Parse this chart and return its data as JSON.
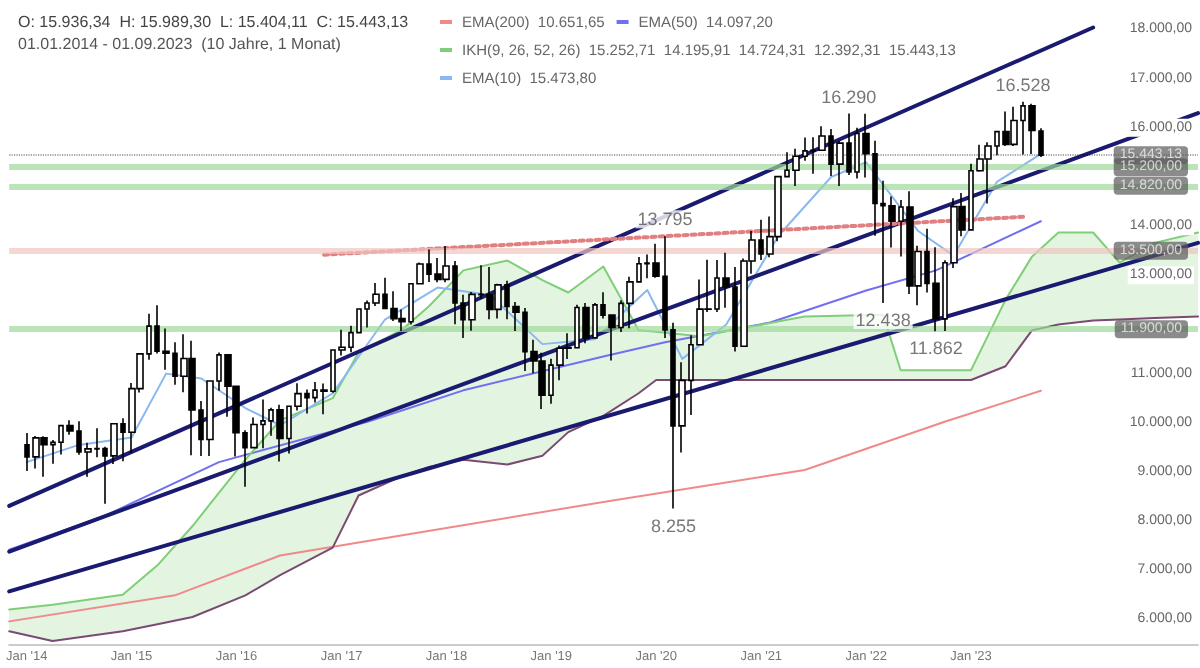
{
  "chart_data": {
    "type": "candlestick",
    "title": "O: 15.936,34  H: 15.989,30  L: 15.404,11  C: 15.443,13",
    "subtitle": "01.01.2014 - 01.09.2023  (10 Jahre, 1 Monat)",
    "x": [
      "2014-01",
      "2014-02",
      "2014-03",
      "2014-04",
      "2014-05",
      "2014-06",
      "2014-07",
      "2014-08",
      "2014-09",
      "2014-10",
      "2014-11",
      "2014-12",
      "2015-01",
      "2015-02",
      "2015-03",
      "2015-04",
      "2015-05",
      "2015-06",
      "2015-07",
      "2015-08",
      "2015-09",
      "2015-10",
      "2015-11",
      "2015-12",
      "2016-01",
      "2016-02",
      "2016-03",
      "2016-04",
      "2016-05",
      "2016-06",
      "2016-07",
      "2016-08",
      "2016-09",
      "2016-10",
      "2016-11",
      "2016-12",
      "2017-01",
      "2017-02",
      "2017-03",
      "2017-04",
      "2017-05",
      "2017-06",
      "2017-07",
      "2017-08",
      "2017-09",
      "2017-10",
      "2017-11",
      "2017-12",
      "2018-01",
      "2018-02",
      "2018-03",
      "2018-04",
      "2018-05",
      "2018-06",
      "2018-07",
      "2018-08",
      "2018-09",
      "2018-10",
      "2018-11",
      "2018-12",
      "2019-01",
      "2019-02",
      "2019-03",
      "2019-04",
      "2019-05",
      "2019-06",
      "2019-07",
      "2019-08",
      "2019-09",
      "2019-10",
      "2019-11",
      "2019-12",
      "2020-01",
      "2020-02",
      "2020-03",
      "2020-04",
      "2020-05",
      "2020-06",
      "2020-07",
      "2020-08",
      "2020-09",
      "2020-10",
      "2020-11",
      "2020-12",
      "2021-01",
      "2021-02",
      "2021-03",
      "2021-04",
      "2021-05",
      "2021-06",
      "2021-07",
      "2021-08",
      "2021-09",
      "2021-10",
      "2021-11",
      "2021-12",
      "2022-01",
      "2022-02",
      "2022-03",
      "2022-04",
      "2022-05",
      "2022-06",
      "2022-07",
      "2022-08",
      "2022-09",
      "2022-10",
      "2022-11",
      "2022-12",
      "2023-01",
      "2023-02",
      "2023-03",
      "2023-04",
      "2023-05",
      "2023-06",
      "2023-07",
      "2023-08",
      "2023-09"
    ],
    "ohlc": [
      [
        9552,
        9794,
        9017,
        9306
      ],
      [
        9306,
        9730,
        9071,
        9692
      ],
      [
        9692,
        9727,
        8903,
        9556
      ],
      [
        9556,
        9651,
        9166,
        9603
      ],
      [
        9603,
        9950,
        9357,
        9943
      ],
      [
        9943,
        10050,
        9754,
        9833
      ],
      [
        9833,
        10030,
        9348,
        9407
      ],
      [
        9407,
        9593,
        8903,
        9470
      ],
      [
        9470,
        9891,
        9300,
        9474
      ],
      [
        9474,
        9510,
        8355,
        9326
      ],
      [
        9326,
        9980,
        9162,
        9980
      ],
      [
        9980,
        10093,
        9219,
        9806
      ],
      [
        9806,
        10810,
        9382,
        10694
      ],
      [
        10694,
        11402,
        10617,
        11402
      ],
      [
        11402,
        12219,
        11281,
        11966
      ],
      [
        11966,
        12391,
        11411,
        11454
      ],
      [
        11454,
        11920,
        11081,
        11413
      ],
      [
        11413,
        11636,
        10776,
        10945
      ],
      [
        10945,
        11802,
        10621,
        11309
      ],
      [
        11309,
        11670,
        9338,
        10259
      ],
      [
        10259,
        10444,
        9325,
        9660
      ],
      [
        9660,
        10850,
        9326,
        10850
      ],
      [
        10850,
        11430,
        10651,
        11382
      ],
      [
        11382,
        11383,
        10124,
        10743
      ],
      [
        10743,
        10743,
        9314,
        9798
      ],
      [
        9798,
        9850,
        8700,
        9495
      ],
      [
        9495,
        10108,
        9486,
        9965
      ],
      [
        9965,
        10474,
        9484,
        10039
      ],
      [
        10039,
        10306,
        9737,
        10263
      ],
      [
        10263,
        10369,
        9214,
        9680
      ],
      [
        9680,
        10337,
        9373,
        10337
      ],
      [
        10337,
        10802,
        10250,
        10593
      ],
      [
        10593,
        10679,
        10190,
        10511
      ],
      [
        10511,
        10827,
        10414,
        10665
      ],
      [
        10665,
        10799,
        10174,
        10640
      ],
      [
        10640,
        11482,
        10611,
        11481
      ],
      [
        11481,
        11893,
        11367,
        11535
      ],
      [
        11535,
        11974,
        11436,
        11834
      ],
      [
        11834,
        12313,
        11833,
        12313
      ],
      [
        12313,
        12486,
        11937,
        12438
      ],
      [
        12438,
        12841,
        12375,
        12615
      ],
      [
        12615,
        12951,
        12314,
        12325
      ],
      [
        12325,
        12676,
        12071,
        12118
      ],
      [
        12118,
        12302,
        11869,
        12056
      ],
      [
        12056,
        12829,
        11999,
        12829
      ],
      [
        12829,
        13262,
        12826,
        13230
      ],
      [
        13230,
        13526,
        12862,
        13024
      ],
      [
        13024,
        13350,
        12861,
        12918
      ],
      [
        12918,
        13597,
        12857,
        13189
      ],
      [
        13189,
        13290,
        12003,
        12436
      ],
      [
        12436,
        12603,
        11727,
        12097
      ],
      [
        12097,
        12658,
        11872,
        12612
      ],
      [
        12612,
        13205,
        12522,
        12605
      ],
      [
        12605,
        13170,
        12104,
        12306
      ],
      [
        12306,
        12830,
        12121,
        12806
      ],
      [
        12806,
        12887,
        12104,
        12364
      ],
      [
        12364,
        12458,
        11865,
        12247
      ],
      [
        12247,
        12335,
        11051,
        11448
      ],
      [
        11448,
        11691,
        11009,
        11257
      ],
      [
        11257,
        11425,
        10279,
        10559
      ],
      [
        10559,
        11300,
        10386,
        11173
      ],
      [
        11173,
        11573,
        10864,
        11516
      ],
      [
        11516,
        11823,
        11299,
        11526
      ],
      [
        11526,
        12402,
        11526,
        12344
      ],
      [
        12344,
        12435,
        11620,
        11727
      ],
      [
        11727,
        12438,
        11725,
        12399
      ],
      [
        12399,
        12656,
        12121,
        12189
      ],
      [
        12189,
        12190,
        11266,
        11939
      ],
      [
        11939,
        12494,
        11845,
        12428
      ],
      [
        12428,
        12969,
        11925,
        12867
      ],
      [
        12867,
        13374,
        12866,
        13236
      ],
      [
        13236,
        13425,
        12940,
        13249
      ],
      [
        13249,
        13640,
        12948,
        12981
      ],
      [
        12981,
        13795,
        11724,
        11890
      ],
      [
        11890,
        12035,
        8255,
        9936
      ],
      [
        9936,
        11231,
        9393,
        10862
      ],
      [
        10862,
        11781,
        10160,
        11587
      ],
      [
        11587,
        12913,
        11577,
        12311
      ],
      [
        12311,
        13314,
        12253,
        12313
      ],
      [
        12313,
        13311,
        12254,
        12945
      ],
      [
        12945,
        13460,
        12340,
        12761
      ],
      [
        12761,
        13168,
        11451,
        11556
      ],
      [
        11556,
        13340,
        11556,
        13291
      ],
      [
        13291,
        13903,
        13030,
        13719
      ],
      [
        13719,
        14131,
        13311,
        13433
      ],
      [
        13433,
        14197,
        13368,
        13786
      ],
      [
        13786,
        15008,
        13691,
        15008
      ],
      [
        15008,
        15502,
        14999,
        15136
      ],
      [
        15136,
        15573,
        14816,
        15421
      ],
      [
        15421,
        15803,
        15331,
        15531
      ],
      [
        15531,
        15810,
        15068,
        15544
      ],
      [
        15544,
        16030,
        15529,
        15835
      ],
      [
        15835,
        15975,
        15020,
        15261
      ],
      [
        15261,
        15736,
        14819,
        15688
      ],
      [
        15688,
        16290,
        15038,
        15100
      ],
      [
        15100,
        16000,
        14967,
        15885
      ],
      [
        15885,
        16285,
        14989,
        15471
      ],
      [
        15471,
        15736,
        13807,
        14461
      ],
      [
        14461,
        14925,
        12438,
        14415
      ],
      [
        14415,
        14605,
        13565,
        14098
      ],
      [
        14098,
        14531,
        13381,
        14388
      ],
      [
        14388,
        14709,
        12618,
        12784
      ],
      [
        12784,
        13599,
        12391,
        13484
      ],
      [
        13484,
        13947,
        12652,
        12835
      ],
      [
        12835,
        13568,
        11862,
        12114
      ],
      [
        12114,
        13305,
        11869,
        13254
      ],
      [
        13254,
        14569,
        13150,
        14397
      ],
      [
        14397,
        14675,
        13792,
        13924
      ],
      [
        13924,
        15270,
        13924,
        15128
      ],
      [
        15128,
        15658,
        15104,
        15365
      ],
      [
        15365,
        15706,
        14458,
        15629
      ],
      [
        15629,
        15922,
        15444,
        15922
      ],
      [
        15922,
        16332,
        15629,
        15664
      ],
      [
        15664,
        16427,
        15629,
        16148
      ],
      [
        16148,
        16528,
        15456,
        16447
      ],
      [
        16447,
        16488,
        15469,
        15947
      ],
      [
        15936.34,
        15989.3,
        15404.11,
        15443.13
      ]
    ],
    "series": [
      {
        "type": "line",
        "name": "EMA(200)  10.651,65",
        "color": "#f08a8a",
        "x": [
          "2013-11",
          "2015-06",
          "2016-06",
          "2017-08",
          "2019-07",
          "2021-06",
          "2022-10",
          "2023-09"
        ],
        "values": [
          5960,
          6490,
          7300,
          7710,
          8390,
          9040,
          10020,
          10650
        ]
      },
      {
        "type": "line",
        "name": "EMA(50)  14.097,20",
        "color": "#7070f0",
        "x": [
          "2013-11",
          "2014-10",
          "2015-11",
          "2017-04",
          "2018-03",
          "2019-07",
          "2020-02",
          "2021-02",
          "2022-01",
          "2022-09",
          "2023-09"
        ],
        "values": [
          7420,
          8110,
          9200,
          10020,
          10660,
          11350,
          11640,
          12040,
          12690,
          13100,
          14100
        ]
      },
      {
        "type": "line",
        "name": "IKH(9, 26, 52, 26)  15.252,71  14.195,91  14.724,31  12.392,31  15.443,13",
        "color": "#7fcf78",
        "x": [
          "2013-11",
          "2014-04",
          "2014-12",
          "2015-04",
          "2015-08",
          "2016-02",
          "2016-06",
          "2016-12",
          "2017-03",
          "2017-08",
          "2017-11",
          "2018-03",
          "2018-08",
          "2018-12",
          "2019-03",
          "2019-07",
          "2019-11",
          "2020-01",
          "2020-06",
          "2021-06",
          "2022-03",
          "2022-05",
          "2023-01",
          "2023-05",
          "2023-08",
          "2023-11",
          "2024-03",
          "2024-06",
          "2024-10",
          "2025-03"
        ],
        "values": [
          6200,
          6300,
          6500,
          7100,
          7900,
          9250,
          10050,
          10500,
          11430,
          11900,
          12370,
          13100,
          13300,
          12900,
          12650,
          13180,
          11880,
          11850,
          11760,
          12160,
          12200,
          11070,
          11070,
          12500,
          13380,
          13870,
          13870,
          13260,
          13660,
          13870
        ],
        "upper": [
          6200,
          6300,
          6500,
          7100,
          7900,
          9250,
          10050,
          10500,
          11430,
          11900,
          12370,
          13100,
          13300,
          12900,
          12650,
          13180,
          11880,
          11850,
          11760,
          12160,
          12200,
          11070,
          11070,
          12500,
          13380,
          13870,
          13870,
          13260,
          13660,
          13870
        ],
        "lower": [
          5760,
          5560,
          5760,
          5900,
          6050,
          6490,
          6900,
          7460,
          8520,
          8920,
          9100,
          9250,
          9150,
          9330,
          9810,
          10140,
          10600,
          10870,
          10870,
          10870,
          10870,
          10870,
          10870,
          11150,
          11880,
          12000,
          12080,
          12100,
          12130,
          12160
        ]
      },
      {
        "type": "line",
        "name": "EMA(10)  15.473,80",
        "color": "#8ab8f0",
        "x": [
          "2014-01",
          "2014-07",
          "2015-01",
          "2015-05",
          "2015-09",
          "2016-02",
          "2016-06",
          "2016-12",
          "2017-06",
          "2017-12",
          "2018-06",
          "2018-12",
          "2019-06",
          "2019-12",
          "2020-04",
          "2020-09",
          "2021-03",
          "2021-09",
          "2022-01",
          "2022-07",
          "2022-11",
          "2023-04",
          "2023-09"
        ],
        "values": [
          9200,
          9550,
          9700,
          11000,
          10900,
          10300,
          9950,
          10600,
          12100,
          12750,
          12600,
          11600,
          11700,
          12700,
          11300,
          12000,
          13800,
          15000,
          15300,
          13900,
          13400,
          14900,
          15470
        ]
      },
      {
        "type": "line",
        "color": "#7b4a72",
        "x": [
          "2013-11",
          "2014-04",
          "2014-12",
          "2015-04",
          "2015-08",
          "2016-02",
          "2016-06",
          "2016-12",
          "2017-03",
          "2017-08",
          "2017-11",
          "2018-03",
          "2018-08",
          "2018-12",
          "2019-03",
          "2019-07",
          "2019-11",
          "2020-01",
          "2020-06",
          "2021-06",
          "2022-03",
          "2022-05",
          "2023-01",
          "2023-05",
          "2023-08",
          "2023-11",
          "2024-03",
          "2024-06",
          "2024-10",
          "2025-03"
        ],
        "values": [
          5760,
          5560,
          5760,
          5900,
          6050,
          6490,
          6900,
          7460,
          8520,
          8920,
          9100,
          9250,
          9150,
          9330,
          9810,
          10140,
          10600,
          10870,
          10870,
          10870,
          10870,
          10870,
          10870,
          11150,
          11880,
          12000,
          12080,
          12100,
          12130,
          12160
        ]
      },
      {
        "type": "line",
        "color": "#1a1a70",
        "x": [
          "2013-11",
          "2024-03"
        ],
        "values": [
          8310,
          18040
        ]
      },
      {
        "type": "line",
        "color": "#1a1a70",
        "x": [
          "2013-11",
          "2025-03"
        ],
        "values": [
          7380,
          16300
        ]
      },
      {
        "type": "line",
        "color": "#1a1a70",
        "x": [
          "2013-11",
          "2025-03"
        ],
        "values": [
          6570,
          13660
        ]
      },
      {
        "type": "line",
        "color": "#e08080",
        "line_style": "dotted",
        "x": [
          "2016-11",
          "2023-07"
        ],
        "values": [
          13420,
          14190
        ]
      }
    ],
    "ref_lines": [
      {
        "axis": "y",
        "value": 15443.13,
        "label": "15.443,13",
        "color": "#000000",
        "line_style": "dotted"
      },
      {
        "axis": "y",
        "value": 15200,
        "label": "15.200,00",
        "color": "#9ed89a"
      },
      {
        "axis": "y",
        "value": 14820,
        "label": "14.820,00",
        "color": "#9ed89a"
      },
      {
        "axis": "y",
        "value": 13500,
        "label": "13.500,00",
        "color": "#f0c4c0"
      },
      {
        "axis": "y",
        "value": 11900,
        "label": "11.900,00",
        "color": "#9ed89a"
      }
    ],
    "annotations": [
      {
        "text": "16.290",
        "x": "2021-11",
        "y": 16290
      },
      {
        "text": "16.528",
        "x": "2023-07",
        "y": 16528
      },
      {
        "text": "13.795",
        "x": "2020-02",
        "y": 13795
      },
      {
        "text": "12.438",
        "x": "2022-03",
        "y": 12438
      },
      {
        "text": "11.862",
        "x": "2022-09",
        "y": 11862
      },
      {
        "text": "8.255",
        "x": "2020-03",
        "y": 8255
      }
    ],
    "xlim": [
      "2013-11",
      "2025-03"
    ],
    "xticks": [
      {
        "value": "2014-01",
        "label": "Jan '14"
      },
      {
        "value": "2015-01",
        "label": "Jan '15"
      },
      {
        "value": "2016-01",
        "label": "Jan '16"
      },
      {
        "value": "2017-01",
        "label": "Jan '17"
      },
      {
        "value": "2018-01",
        "label": "Jan '18"
      },
      {
        "value": "2019-01",
        "label": "Jan '19"
      },
      {
        "value": "2020-01",
        "label": "Jan '20"
      },
      {
        "value": "2021-01",
        "label": "Jan '21"
      },
      {
        "value": "2022-01",
        "label": "Jan '22"
      },
      {
        "value": "2023-01",
        "label": "Jan '23"
      }
    ],
    "ylim": [
      5500,
      18600
    ],
    "yticks": [
      {
        "value": 6000,
        "label": "6.000,00"
      },
      {
        "value": 7000,
        "label": "7.000,00"
      },
      {
        "value": 8000,
        "label": "8.000,00"
      },
      {
        "value": 9000,
        "label": "9.000,00"
      },
      {
        "value": 10000,
        "label": "10.000,00"
      },
      {
        "value": 11000,
        "label": "11.000,00"
      },
      {
        "value": 13000,
        "label": "13.000,00"
      },
      {
        "value": 14000,
        "label": "14.000,00"
      },
      {
        "value": 16000,
        "label": "16.000,00"
      },
      {
        "value": 17000,
        "label": "17.000,00"
      },
      {
        "value": 18000,
        "label": "18.000,00"
      }
    ],
    "grid": false,
    "legend": "top",
    "marker": "none"
  }
}
